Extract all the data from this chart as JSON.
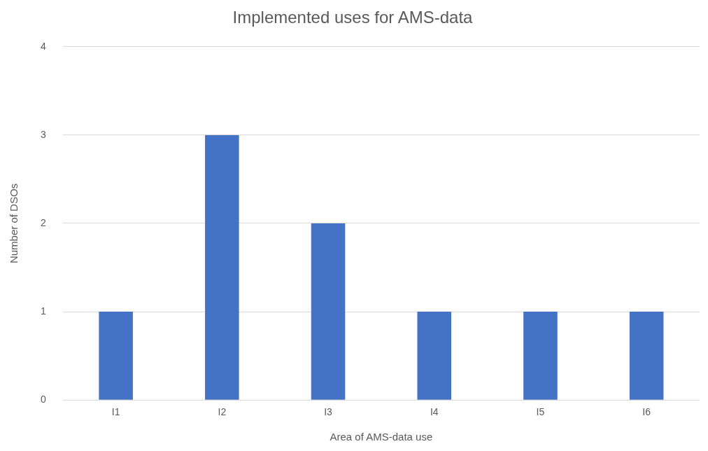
{
  "chart_data": {
    "type": "bar",
    "title": "Implemented uses for AMS-data",
    "xlabel": "Area of AMS-data use",
    "ylabel": "Number of DSOs",
    "categories": [
      "I1",
      "I2",
      "I3",
      "I4",
      "I5",
      "I6"
    ],
    "values": [
      1,
      3,
      2,
      1,
      1,
      1
    ],
    "color": "#4472c4",
    "ylim": [
      0,
      4
    ],
    "yticks": [
      0,
      1,
      2,
      3,
      4
    ],
    "grid": "y"
  }
}
